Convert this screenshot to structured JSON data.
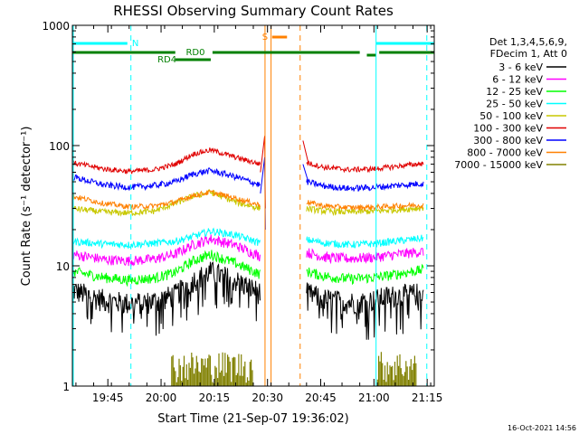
{
  "chart_data": {
    "type": "line",
    "title": "RHESSI Observing Summary Count Rates",
    "xlabel": "Start Time (21-Sep-07 19:36:02)",
    "ylabel": "Count Rate (s⁻¹ detector⁻¹)",
    "yscale": "log",
    "ylim": [
      1,
      1000
    ],
    "xlim_min": [
      -1,
      101
    ],
    "x_ticks": [
      {
        "min": 9,
        "label": "19:45"
      },
      {
        "min": 24,
        "label": "20:00"
      },
      {
        "min": 39,
        "label": "20:15"
      },
      {
        "min": 54,
        "label": "20:30"
      },
      {
        "min": 69,
        "label": "20:45"
      },
      {
        "min": 84,
        "label": "21:00"
      },
      {
        "min": 99,
        "label": "21:15"
      }
    ],
    "y_ticks": [
      {
        "value": 1,
        "label": "1"
      },
      {
        "value": 10,
        "label": "10"
      },
      {
        "value": 100,
        "label": "100"
      },
      {
        "value": 1000,
        "label": "1000"
      }
    ],
    "legend_header": [
      "Det 1,3,4,5,6,9,",
      "FDecim 1, Att 0"
    ],
    "timestamp": "16-Oct-2021 14:56",
    "series": [
      {
        "name": "3 - 6 keV",
        "color": "#000000",
        "pre_x": [
          -1,
          8,
          15,
          22,
          28,
          33,
          38,
          45,
          52
        ],
        "pre_y": [
          6.3,
          5.2,
          4.9,
          5.1,
          5.8,
          7.6,
          9.0,
          7.6,
          6.0
        ],
        "post_x": [
          65,
          70,
          77,
          84,
          88,
          94,
          98
        ],
        "post_y": [
          6.0,
          5.3,
          5.0,
          5.2,
          5.6,
          5.8,
          6.0
        ]
      },
      {
        "name": "6 - 12 keV",
        "color": "#ff00ff",
        "pre_x": [
          -1,
          8,
          15,
          22,
          28,
          33,
          38,
          45,
          52
        ],
        "pre_y": [
          12.5,
          11.3,
          11.0,
          11.4,
          12.5,
          15.0,
          16.8,
          14.8,
          12.0
        ],
        "post_x": [
          65,
          70,
          77,
          84,
          88,
          94,
          98
        ],
        "post_y": [
          13.0,
          11.8,
          11.5,
          11.8,
          12.2,
          12.8,
          13.2
        ]
      },
      {
        "name": "12 - 25 keV",
        "color": "#00ff00",
        "pre_x": [
          -1,
          8,
          15,
          22,
          28,
          33,
          38,
          45,
          52
        ],
        "pre_y": [
          9.0,
          8.0,
          7.6,
          7.9,
          8.8,
          11.0,
          12.5,
          10.5,
          8.5
        ],
        "post_x": [
          65,
          70,
          77,
          84,
          88,
          94,
          98
        ],
        "post_y": [
          9.0,
          8.2,
          7.8,
          8.0,
          8.3,
          8.9,
          9.3
        ]
      },
      {
        "name": "25 - 50 keV",
        "color": "#00ffff",
        "pre_x": [
          -1,
          8,
          15,
          22,
          28,
          33,
          38,
          45,
          52
        ],
        "pre_y": [
          16.0,
          15.2,
          15.0,
          15.4,
          16.0,
          17.5,
          19.5,
          18.0,
          15.5
        ],
        "post_x": [
          65,
          70,
          77,
          84,
          88,
          94,
          98
        ],
        "post_y": [
          16.5,
          15.5,
          15.0,
          15.3,
          15.8,
          16.5,
          17.0
        ]
      },
      {
        "name": "50 - 100 keV",
        "color": "#c8c800",
        "pre_x": [
          -1,
          8,
          15,
          22,
          28,
          33,
          38,
          45,
          52
        ],
        "pre_y": [
          30.0,
          28.0,
          27.5,
          28.5,
          33.0,
          38.0,
          41.0,
          34.0,
          30.0
        ],
        "post_x": [
          65,
          70,
          77,
          84,
          88,
          94,
          98
        ],
        "post_y": [
          30.0,
          28.5,
          28.0,
          28.5,
          29.0,
          29.8,
          30.5
        ]
      },
      {
        "name": "100 - 300 keV",
        "color": "#e00000",
        "pre_x": [
          -1,
          8,
          15,
          22,
          28,
          33,
          38,
          45,
          52
        ],
        "pre_y": [
          72.0,
          64.0,
          61.0,
          63.0,
          70.0,
          85.0,
          92.0,
          80.0,
          70.0
        ],
        "post_x": [
          65,
          70,
          77,
          84,
          88,
          94,
          98
        ],
        "post_y": [
          72.0,
          66.0,
          63.0,
          64.0,
          66.0,
          69.0,
          71.0
        ]
      },
      {
        "name": "300 - 800 keV",
        "color": "#0000ff",
        "pre_x": [
          -1,
          8,
          15,
          22,
          28,
          33,
          38,
          45,
          52
        ],
        "pre_y": [
          55.0,
          47.0,
          45.0,
          46.5,
          50.0,
          58.0,
          62.0,
          55.0,
          47.0
        ],
        "post_x": [
          65,
          70,
          77,
          84,
          88,
          94,
          98
        ],
        "post_y": [
          50.0,
          46.0,
          44.0,
          45.0,
          46.0,
          47.5,
          48.5
        ]
      },
      {
        "name": "800 - 7000 keV",
        "color": "#ff8000",
        "pre_x": [
          -1,
          8,
          15,
          22,
          28,
          33,
          38,
          45,
          52
        ],
        "pre_y": [
          38.0,
          33.0,
          31.0,
          31.5,
          34.0,
          38.5,
          41.0,
          36.5,
          32.0
        ],
        "post_x": [
          65,
          70,
          77,
          84,
          88,
          94,
          98
        ],
        "post_y": [
          34.0,
          31.5,
          30.5,
          30.8,
          31.2,
          31.8,
          32.0
        ]
      },
      {
        "name": "7000 - 15000 keV",
        "color": "#808000",
        "pre_x": [
          27,
          35,
          42,
          50
        ],
        "pre_y": [
          1.8,
          1.7,
          1.6,
          1.7
        ],
        "post_x": [
          85,
          90,
          96
        ],
        "post_y": [
          1.6,
          1.7,
          1.6
        ]
      }
    ],
    "annotations": [
      {
        "label": "N",
        "color": "#00ffff"
      },
      {
        "label": "RD0",
        "color": "#008000"
      },
      {
        "label": "RD4",
        "color": "#008000"
      },
      {
        "label": "S",
        "color": "#ff8000"
      }
    ]
  }
}
